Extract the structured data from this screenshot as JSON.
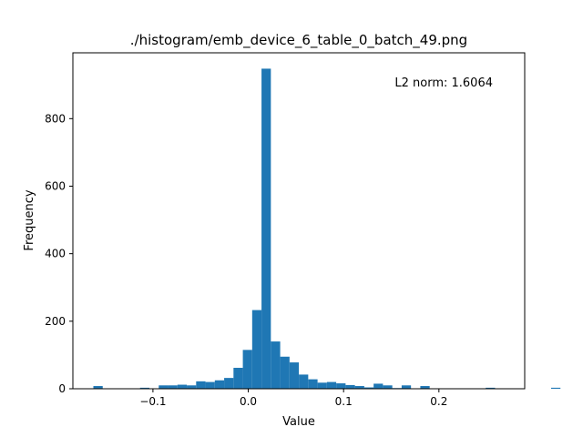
{
  "chart_data": {
    "type": "bar",
    "subtype": "histogram",
    "title": "./histogram/emb_device_6_table_0_batch_49.png",
    "xlabel": "Value",
    "ylabel": "Frequency",
    "annotation": "L2 norm: 1.6064",
    "xlim": [
      -0.184,
      0.29
    ],
    "ylim": [
      0,
      995
    ],
    "grid": false,
    "legend": "none",
    "bar_color": "#1f77b4",
    "bin_start": -0.1625,
    "bin_width": 0.0098,
    "counts": [
      8,
      0,
      0,
      0,
      0,
      3,
      0,
      10,
      10,
      12,
      10,
      22,
      20,
      25,
      32,
      62,
      115,
      233,
      948,
      140,
      95,
      78,
      42,
      28,
      18,
      20,
      16,
      11,
      8,
      4,
      15,
      10,
      2,
      10,
      0,
      8,
      0,
      0,
      0,
      0,
      0,
      0,
      3,
      0,
      0,
      0,
      0,
      0,
      0,
      3
    ],
    "xticks": [
      {
        "value": -0.1,
        "label": "−0.1"
      },
      {
        "value": 0.0,
        "label": "0.0"
      },
      {
        "value": 0.1,
        "label": "0.1"
      },
      {
        "value": 0.2,
        "label": "0.2"
      }
    ],
    "yticks": [
      {
        "value": 0,
        "label": "0"
      },
      {
        "value": 200,
        "label": "200"
      },
      {
        "value": 400,
        "label": "400"
      },
      {
        "value": 600,
        "label": "600"
      },
      {
        "value": 800,
        "label": "800"
      }
    ]
  }
}
